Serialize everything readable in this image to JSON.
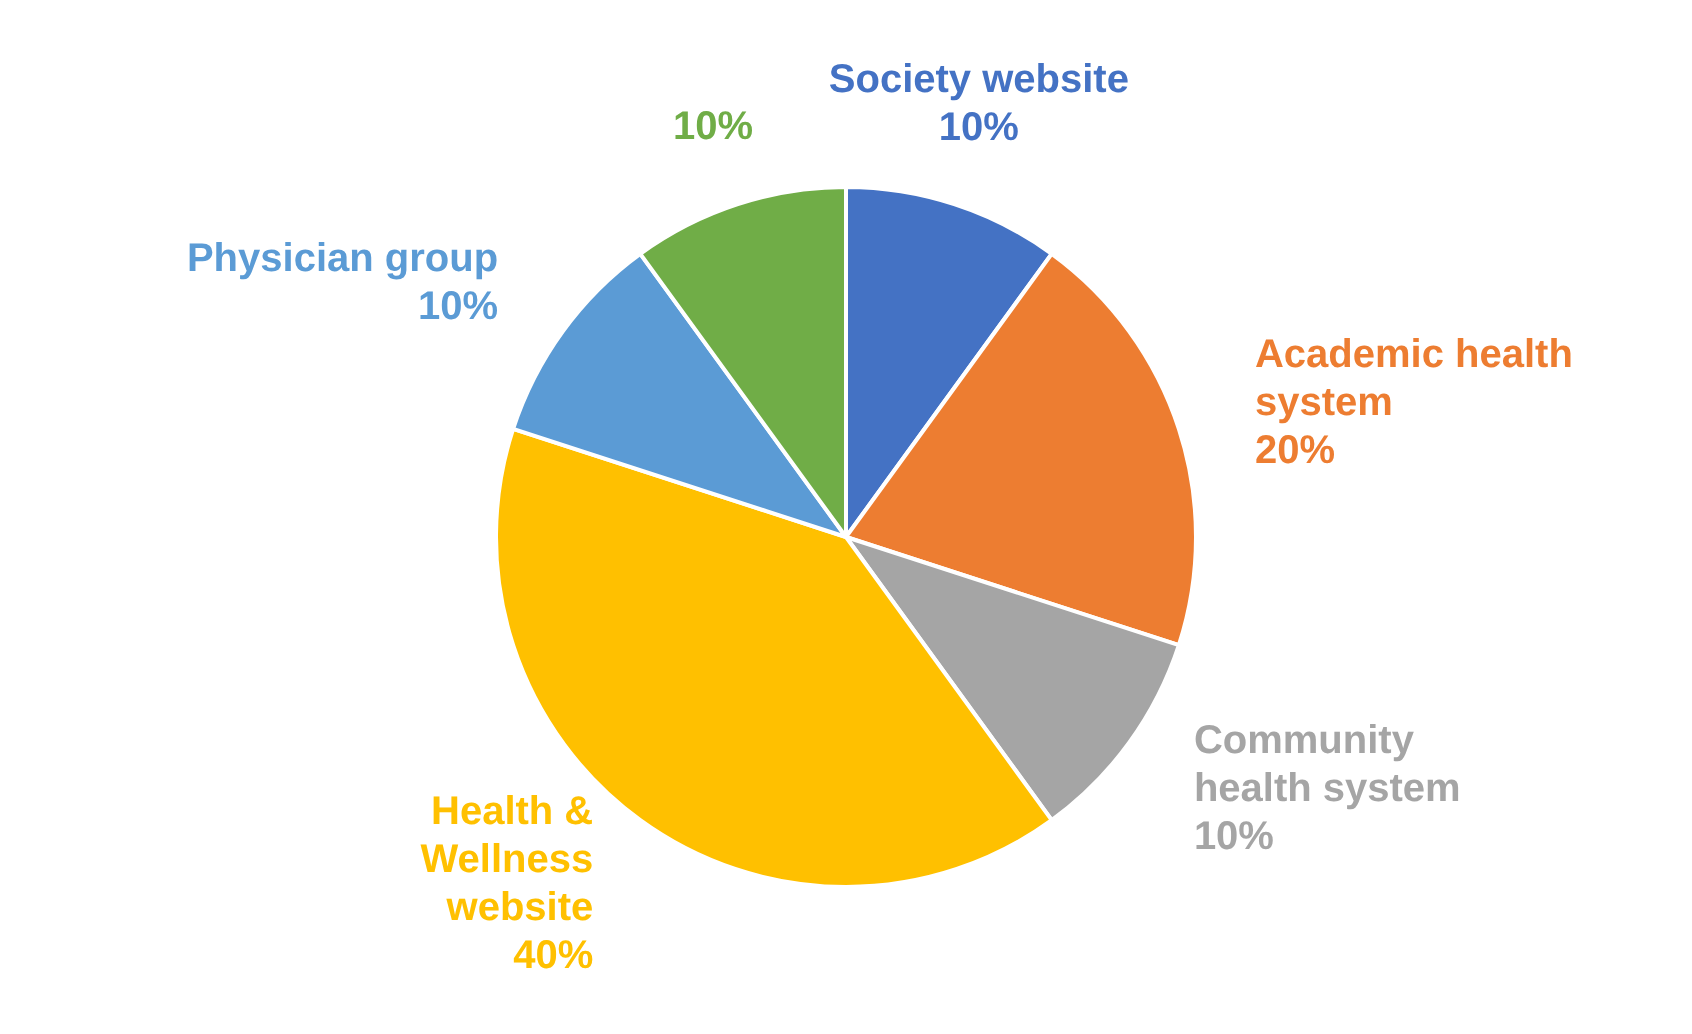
{
  "chart_data": {
    "type": "pie",
    "categories": [
      "Society website",
      "Academic health system",
      "Community health system",
      "Health & Wellness website",
      "Physician group",
      null
    ],
    "values": [
      10,
      20,
      10,
      40,
      10,
      10
    ],
    "colors": [
      "#4472c4",
      "#ed7d31",
      "#a5a5a5",
      "#ffc000",
      "#5b9bd5",
      "#70ad47"
    ],
    "value_labels": [
      "10%",
      "20%",
      "10%",
      "40%",
      "10%",
      "10%"
    ]
  }
}
